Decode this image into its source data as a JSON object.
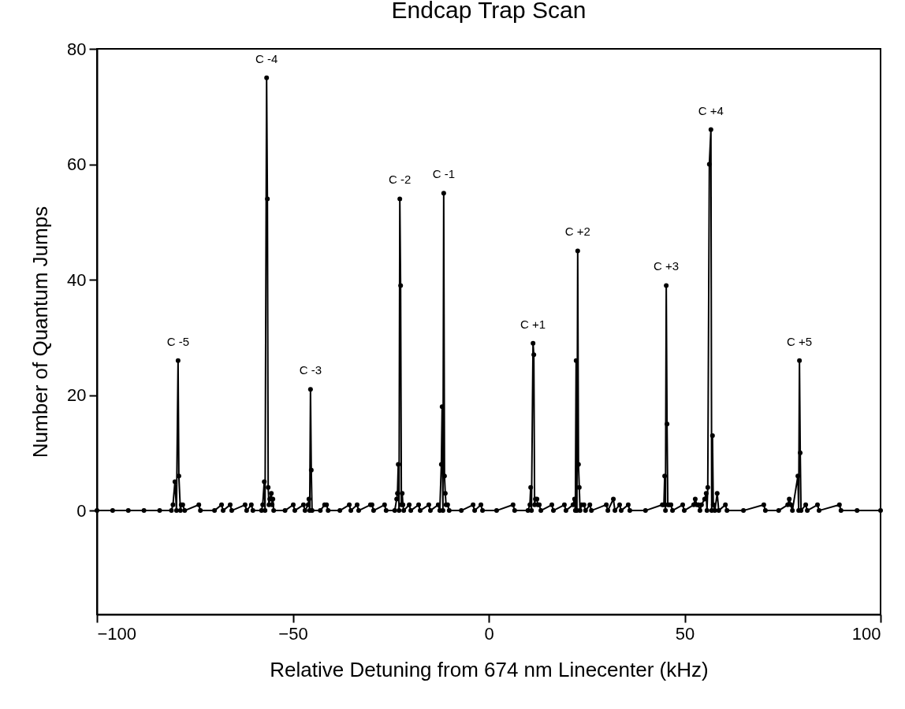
{
  "chart_data": {
    "type": "line",
    "title": "Endcap Trap Scan",
    "xlabel": "Relative Detuning from 674 nm Linecenter (kHz)",
    "ylabel": "Number of Quantum Jumps",
    "xlim": [
      -100,
      100
    ],
    "xticks": [
      -100,
      -50,
      0,
      50,
      100
    ],
    "ylim": [
      -18,
      80
    ],
    "yticks": [
      0,
      20,
      40,
      60,
      80
    ],
    "grid": false,
    "marker": "circle",
    "line_style": "solid",
    "series": [
      {
        "color": "#000000",
        "x": [
          -100,
          -96,
          -92,
          -88,
          -84,
          -81,
          -80.6,
          -80.1,
          -79.7,
          -79.3,
          -79.1,
          -78.7,
          -78.5,
          -78.1,
          -77.6,
          -74,
          -73.6,
          -70,
          -68.2,
          -67.8,
          -66,
          -65.6,
          -62.2,
          -61.8,
          -60.6,
          -60.2,
          -58,
          -57.7,
          -57.3,
          -57.1,
          -56.7,
          -56.5,
          -56.3,
          -56.1,
          -55.9,
          -55.5,
          -55.3,
          -55.1,
          -54.9,
          -52,
          -49.9,
          -49.5,
          -47.3,
          -46.9,
          -46.1,
          -45.9,
          -45.7,
          -45.5,
          -45.3,
          -45.1,
          -43,
          -41.9,
          -41.4,
          -41,
          -38,
          -35.6,
          -35.2,
          -33.6,
          -33.2,
          -30.2,
          -29.8,
          -29.4,
          -26.6,
          -26.2,
          -24,
          -23.5,
          -23.3,
          -23.1,
          -22.9,
          -22.7,
          -22.5,
          -22.3,
          -22.1,
          -21.9,
          -21.7,
          -20.3,
          -19.9,
          -17.9,
          -17.5,
          -15.3,
          -14.9,
          -12.9,
          -12.5,
          -12.1,
          -11.9,
          -11.7,
          -11.5,
          -11.3,
          -11.1,
          -10.9,
          -10.5,
          -10.1,
          -7,
          -4,
          -3.6,
          -2,
          -1.6,
          2,
          6.2,
          6.6,
          10,
          10.5,
          10.7,
          10.9,
          11.3,
          11.5,
          11.7,
          11.9,
          12.3,
          12.5,
          12.9,
          13.3,
          16.1,
          16.5,
          19.3,
          19.7,
          21.5,
          21.9,
          22.1,
          22.3,
          22.5,
          22.7,
          22.9,
          23.1,
          23.3,
          23.7,
          24.3,
          24.7,
          25.8,
          26.2,
          30,
          30.4,
          31.8,
          32.2,
          33.4,
          33.8,
          35.6,
          36,
          40,
          44.3,
          44.7,
          44.9,
          45.1,
          45.3,
          45.5,
          45.7,
          46.1,
          46.5,
          46.9,
          49.5,
          49.9,
          52.3,
          52.7,
          53.1,
          53.5,
          53.9,
          54.3,
          55.1,
          55.5,
          55.7,
          55.9,
          56.3,
          56.7,
          56.9,
          57.1,
          57.3,
          57.7,
          58.3,
          58.7,
          60.4,
          60.8,
          65,
          70.2,
          70.6,
          74,
          76.3,
          76.7,
          77.1,
          77.5,
          78.9,
          79.1,
          79.3,
          79.5,
          79.7,
          80.9,
          81.3,
          83.9,
          84.3,
          89.5,
          89.9,
          94,
          100
        ],
        "values": [
          0,
          0,
          0,
          0,
          0,
          0,
          1,
          5,
          0,
          26,
          6,
          0,
          1,
          1,
          0,
          1,
          0,
          0,
          1,
          0,
          1,
          0,
          1,
          0,
          1,
          0,
          0,
          1,
          5,
          0,
          75,
          54,
          4,
          1,
          2,
          3,
          1,
          2,
          0,
          0,
          1,
          0,
          1,
          0,
          1,
          2,
          0,
          21,
          7,
          0,
          0,
          1,
          1,
          0,
          0,
          1,
          0,
          1,
          0,
          1,
          1,
          0,
          1,
          0,
          0,
          2,
          3,
          8,
          0,
          54,
          39,
          1,
          3,
          1,
          0,
          1,
          0,
          1,
          0,
          1,
          0,
          1,
          0,
          8,
          18,
          0,
          55,
          6,
          3,
          1,
          1,
          0,
          0,
          1,
          0,
          1,
          0,
          0,
          1,
          0,
          0,
          1,
          4,
          0,
          29,
          27,
          1,
          2,
          2,
          1,
          1,
          0,
          1,
          0,
          1,
          0,
          1,
          2,
          0,
          26,
          0,
          45,
          8,
          4,
          0,
          1,
          1,
          0,
          1,
          0,
          1,
          0,
          2,
          0,
          1,
          0,
          1,
          0,
          0,
          1,
          1,
          6,
          0,
          39,
          15,
          1,
          1,
          1,
          0,
          1,
          0,
          1,
          2,
          1,
          1,
          0,
          1,
          2,
          3,
          0,
          4,
          60,
          66,
          0,
          13,
          1,
          0,
          3,
          0,
          1,
          0,
          0,
          1,
          0,
          0,
          1,
          2,
          1,
          0,
          6,
          0,
          26,
          10,
          0,
          1,
          0,
          1,
          0,
          1,
          0,
          0,
          0
        ]
      }
    ],
    "annotations": [
      {
        "text": "C -5",
        "x": -79.3,
        "y": 26
      },
      {
        "text": "C -4",
        "x": -56.7,
        "y": 75
      },
      {
        "text": "C -3",
        "x": -45.5,
        "y": 21
      },
      {
        "text": "C -2",
        "x": -22.7,
        "y": 54
      },
      {
        "text": "C -1",
        "x": -11.5,
        "y": 55
      },
      {
        "text": "C +1",
        "x": 11.3,
        "y": 29
      },
      {
        "text": "C +2",
        "x": 22.7,
        "y": 45
      },
      {
        "text": "C +3",
        "x": 45.3,
        "y": 39
      },
      {
        "text": "C +4",
        "x": 56.7,
        "y": 66
      },
      {
        "text": "C +5",
        "x": 79.3,
        "y": 26
      }
    ]
  }
}
